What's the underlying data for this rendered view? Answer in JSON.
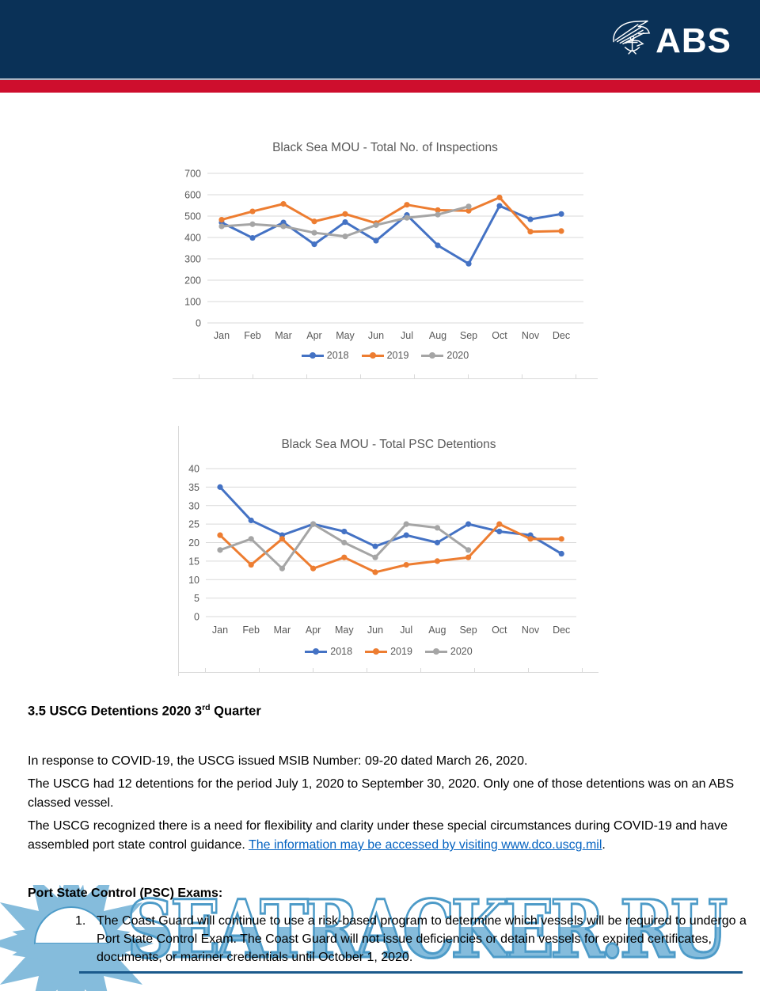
{
  "header": {
    "logo_text": "ABS"
  },
  "chart_data": [
    {
      "type": "line",
      "title": "Black Sea MOU - Total No. of Inspections",
      "categories": [
        "Jan",
        "Feb",
        "Mar",
        "Apr",
        "May",
        "Jun",
        "Jul",
        "Aug",
        "Sep",
        "Oct",
        "Nov",
        "Dec"
      ],
      "y_ticks": [
        700,
        600,
        500,
        400,
        300,
        200,
        100,
        0
      ],
      "ylim": [
        0,
        700
      ],
      "grid": true,
      "legend_position": "bottom",
      "series": [
        {
          "name": "2018",
          "color": "#4472C4",
          "values": [
            470,
            398,
            470,
            368,
            472,
            385,
            505,
            363,
            277,
            548,
            485,
            510
          ]
        },
        {
          "name": "2019",
          "color": "#ED7D31",
          "values": [
            483,
            522,
            557,
            475,
            510,
            467,
            553,
            528,
            525,
            587,
            427,
            430
          ]
        },
        {
          "name": "2020",
          "color": "#A5A5A5",
          "values": [
            452,
            462,
            452,
            422,
            405,
            458,
            492,
            507,
            545,
            null,
            null,
            null
          ]
        }
      ]
    },
    {
      "type": "line",
      "title": "Black Sea MOU - Total PSC Detentions",
      "categories": [
        "Jan",
        "Feb",
        "Mar",
        "Apr",
        "May",
        "Jun",
        "Jul",
        "Aug",
        "Sep",
        "Oct",
        "Nov",
        "Dec"
      ],
      "y_ticks": [
        40,
        35,
        30,
        25,
        20,
        15,
        10,
        5,
        0
      ],
      "ylim": [
        0,
        40
      ],
      "grid": true,
      "legend_position": "bottom",
      "series": [
        {
          "name": "2018",
          "color": "#4472C4",
          "values": [
            35,
            26,
            22,
            25,
            23,
            19,
            22,
            20,
            25,
            23,
            22,
            17
          ]
        },
        {
          "name": "2019",
          "color": "#ED7D31",
          "values": [
            22,
            14,
            21,
            13,
            16,
            12,
            14,
            15,
            16,
            25,
            21,
            21
          ]
        },
        {
          "name": "2020",
          "color": "#A5A5A5",
          "values": [
            18,
            21,
            13,
            25,
            20,
            16,
            25,
            24,
            18,
            null,
            null,
            null
          ]
        }
      ]
    }
  ],
  "sections": {
    "heading_main": "3.5 USCG Detentions 2020 3",
    "heading_sup": "rd",
    "heading_tail": " Quarter",
    "p1": "In response to COVID-19, the USCG issued MSIB Number: 09-20 dated March 26, 2020.",
    "p2": "The USCG had 12 detentions for the period July 1, 2020 to September 30, 2020. Only one of those detentions was on an ABS classed vessel.",
    "p3_before": "The USCG recognized there is a need for flexibility and clarity under these special circumstances during COVID-19 and have assembled port state control guidance. ",
    "p3_link": "The information may be accessed by visiting www.dco.uscg.mil",
    "p3_after": ".",
    "psc_heading": "Port State Control (PSC) Exams:",
    "list_items": [
      {
        "number": "1.",
        "text": "The Coast Guard will continue to use a risk-based program to determine which vessels will be required to undergo a Port State Control Exam. The Coast Guard will not issue deficiencies or detain vessels for expired certificates, documents, or mariner credentials until October 1, 2020."
      }
    ]
  },
  "watermark": {
    "text": "SEATRACKER.RU"
  },
  "colors": {
    "header_navy": "#0A3157",
    "header_red": "#CE0E2D",
    "link_blue": "#0563C1",
    "chart_text": "#595959",
    "gridline": "#D9D9D9",
    "series_2018": "#4472C4",
    "series_2019": "#ED7D31",
    "series_2020": "#A5A5A5",
    "watermark_blue": "#85BCDC",
    "watermark_outline": "#4D9BC8",
    "watermark_rule": "#1B5A8C"
  }
}
